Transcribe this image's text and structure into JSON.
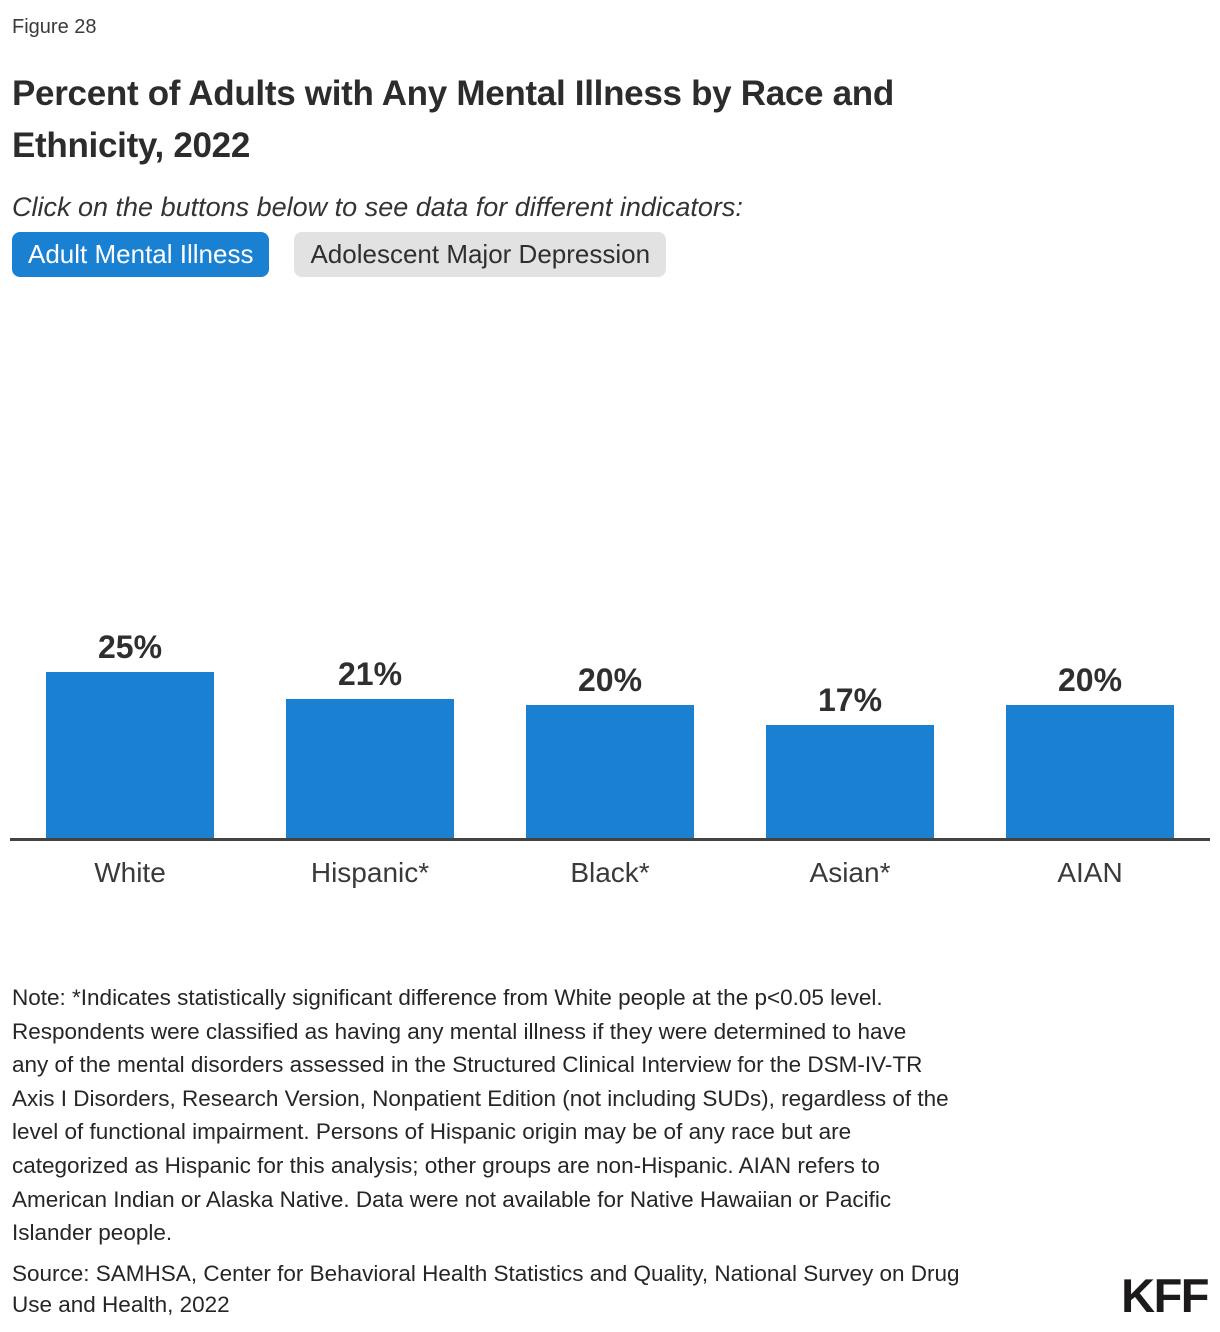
{
  "header": {
    "figure_label": "Figure 28",
    "title_lines": [
      "Percent of Adults with Any Mental Illness by Race and",
      "Ethnicity, 2022"
    ],
    "instruction": "Click on the buttons below to see data for different indicators:"
  },
  "buttons": [
    {
      "label": "Adult Mental Illness",
      "active": true
    },
    {
      "label": "Adolescent Major Depression",
      "active": false
    }
  ],
  "chart_data": {
    "type": "bar",
    "title": "Percent of Adults with Any Mental Illness by Race and Ethnicity, 2022",
    "categories": [
      "White",
      "Hispanic*",
      "Black*",
      "Asian*",
      "AIAN"
    ],
    "values": [
      25,
      21,
      20,
      17,
      20
    ],
    "value_labels": [
      "25%",
      "21%",
      "20%",
      "17%",
      "20%"
    ],
    "xlabel": "",
    "ylabel": "",
    "ylim": [
      0,
      25
    ],
    "grid": false,
    "legend": false,
    "bar_color": "#1a80d2"
  },
  "footer": {
    "note_lines": [
      "Note: *Indicates statistically significant difference from White people at the p<0.05 level.",
      "Respondents were classified as having any mental illness if they were determined to have",
      "any of the mental disorders assessed in the Structured Clinical Interview for the DSM-IV-TR",
      "Axis I Disorders, Research Version, Nonpatient Edition (not including SUDs), regardless of the",
      "level of functional impairment. Persons of Hispanic origin may be of any race but are",
      "categorized as Hispanic for this analysis; other groups are non-Hispanic. AIAN refers to",
      "American Indian or Alaska Native. Data were not available for Native Hawaiian or Pacific",
      "Islander people."
    ],
    "source_lines": [
      "Source: SAMHSA, Center for Behavioral Health Statistics and Quality, National Survey on Drug",
      "Use and Health, 2022"
    ],
    "logo": "KFF"
  },
  "colors": {
    "accent_blue": "#1a80d2",
    "inactive_button_bg": "#e2e2e2",
    "axis_line": "#434343"
  }
}
